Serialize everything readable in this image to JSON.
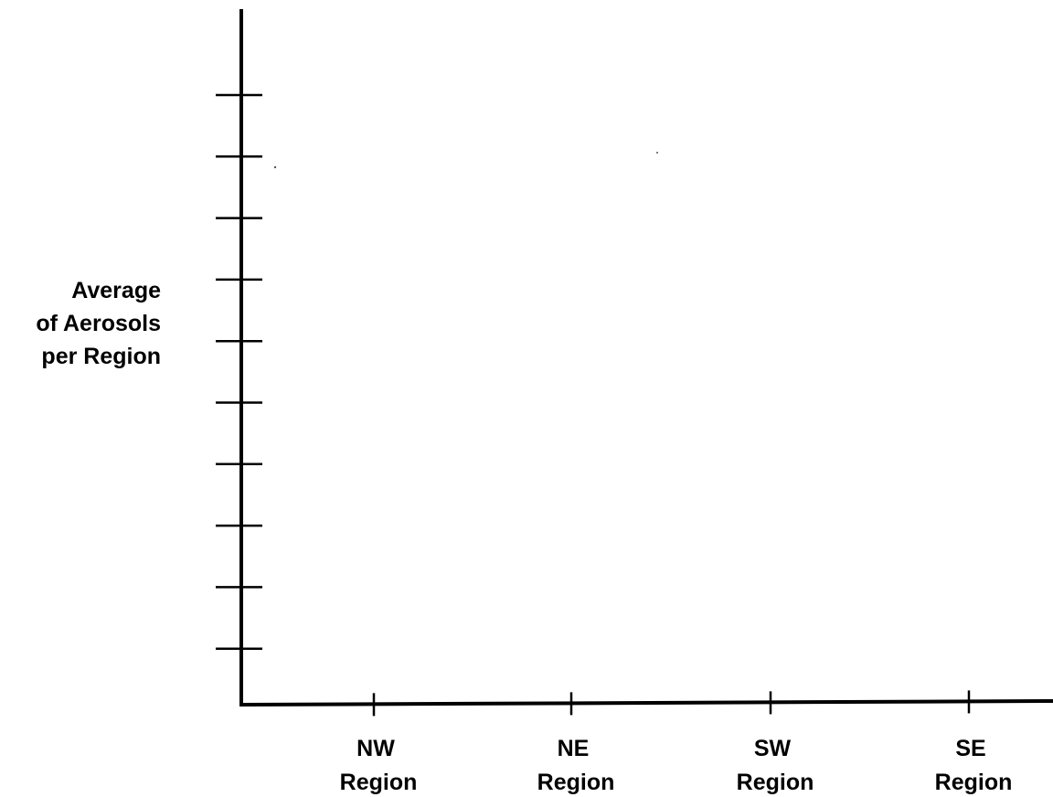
{
  "chart_data": {
    "type": "bar",
    "title": "",
    "xlabel": "",
    "ylabel": [
      "Average",
      "of Aerosols",
      "per Region"
    ],
    "categories": [
      [
        "NW",
        "Region"
      ],
      [
        "NE",
        "Region"
      ],
      [
        "SW",
        "Region"
      ],
      [
        "SE",
        "Region"
      ]
    ],
    "series": [],
    "y_tick_count": 10,
    "y_tick_labels": [],
    "grid": false,
    "legend": "none"
  }
}
